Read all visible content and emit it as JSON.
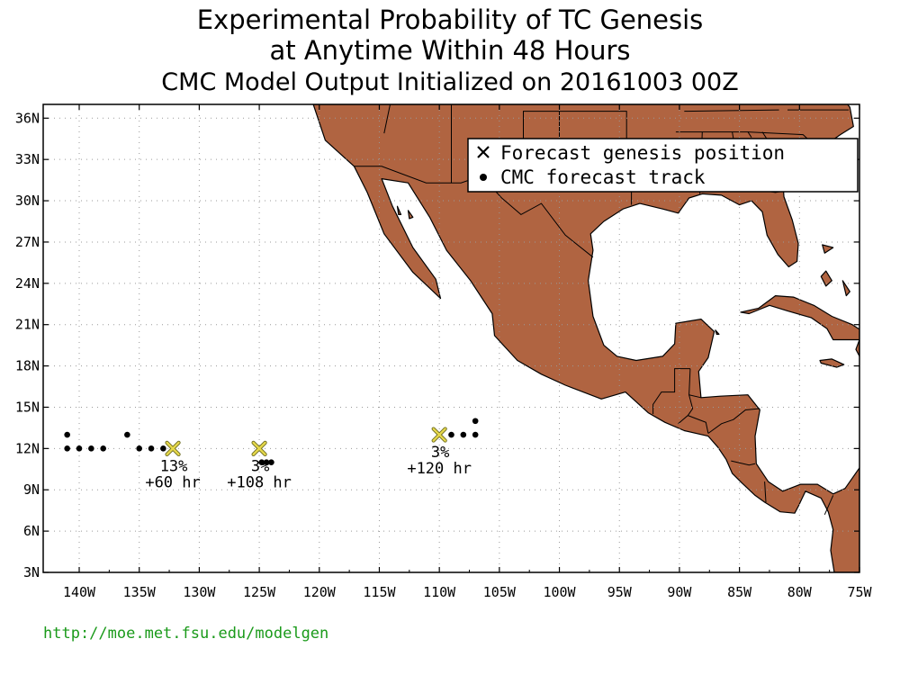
{
  "title": {
    "line1": "Experimental Probability of TC Genesis",
    "line2": "at Anytime Within 48 Hours",
    "line3": "CMC Model Output Initialized on 20161003 00Z"
  },
  "colors": {
    "land": "#b06441",
    "ocean": "#ffffff",
    "genesis_marker": "#e6d84a",
    "url": "#1a9a1a"
  },
  "map": {
    "lon_range": [
      -143,
      -75
    ],
    "lat_range": [
      3,
      37
    ],
    "lat_ticks": [
      {
        "value": 3,
        "label": "3N"
      },
      {
        "value": 6,
        "label": "6N"
      },
      {
        "value": 9,
        "label": "9N"
      },
      {
        "value": 12,
        "label": "12N"
      },
      {
        "value": 15,
        "label": "15N"
      },
      {
        "value": 18,
        "label": "18N"
      },
      {
        "value": 21,
        "label": "21N"
      },
      {
        "value": 24,
        "label": "24N"
      },
      {
        "value": 27,
        "label": "27N"
      },
      {
        "value": 30,
        "label": "30N"
      },
      {
        "value": 33,
        "label": "33N"
      },
      {
        "value": 36,
        "label": "36N"
      }
    ],
    "lon_ticks": [
      {
        "value": -140,
        "label": "140W"
      },
      {
        "value": -135,
        "label": "135W"
      },
      {
        "value": -130,
        "label": "130W"
      },
      {
        "value": -125,
        "label": "125W"
      },
      {
        "value": -120,
        "label": "120W"
      },
      {
        "value": -115,
        "label": "115W"
      },
      {
        "value": -110,
        "label": "110W"
      },
      {
        "value": -105,
        "label": "105W"
      },
      {
        "value": -100,
        "label": "100W"
      },
      {
        "value": -95,
        "label": "95W"
      },
      {
        "value": -90,
        "label": "90W"
      },
      {
        "value": -85,
        "label": "85W"
      },
      {
        "value": -80,
        "label": "80W"
      },
      {
        "value": -75,
        "label": "75W"
      }
    ],
    "grid": "dotted"
  },
  "legend": {
    "placement": "top-right",
    "items": [
      {
        "symbol": "x-icon",
        "label": "Forecast genesis position"
      },
      {
        "symbol": "dot-icon",
        "label": "CMC forecast track"
      }
    ]
  },
  "genesis_events": [
    {
      "lon": -132.2,
      "lat": 12.0,
      "probability": "13%",
      "lead_time": "+60 hr"
    },
    {
      "lon": -125.0,
      "lat": 12.0,
      "probability": "3%",
      "lead_time": "+108 hr"
    },
    {
      "lon": -110.0,
      "lat": 13.0,
      "probability": "3%",
      "lead_time": "+120 hr"
    }
  ],
  "tracks": [
    {
      "name": "track-1",
      "points": [
        [
          -141,
          13
        ],
        [
          -141,
          12
        ],
        [
          -140,
          12
        ],
        [
          -139,
          12
        ],
        [
          -138,
          12
        ]
      ]
    },
    {
      "name": "track-2",
      "points": [
        [
          -136,
          13
        ],
        [
          -135,
          12
        ],
        [
          -134,
          12
        ],
        [
          -133,
          12
        ]
      ]
    },
    {
      "name": "track-3",
      "points": [
        [
          -124.8,
          11
        ],
        [
          -124.4,
          11
        ],
        [
          -124.0,
          11
        ]
      ]
    },
    {
      "name": "track-4",
      "points": [
        [
          -109,
          13
        ],
        [
          -108,
          13
        ],
        [
          -107,
          13
        ],
        [
          -107,
          14
        ]
      ]
    }
  ],
  "footer": {
    "url": "http://moe.met.fsu.edu/modelgen"
  }
}
